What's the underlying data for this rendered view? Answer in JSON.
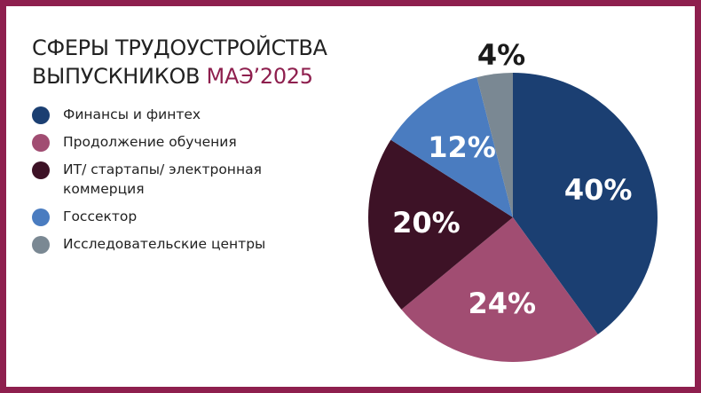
{
  "title": {
    "line1": "СФЕРЫ ТРУДОУСТРОЙСТВА",
    "line2_prefix": "ВЫПУСКНИКОВ ",
    "line2_accent": "МАЭ’2025"
  },
  "colors": {
    "frame": "#8e1f4e",
    "accent": "#8e1f4e"
  },
  "chart_data": {
    "type": "pie",
    "start": "top, clockwise",
    "legend_position": "left",
    "categories": [
      "Финансы и финтех",
      "Продолжение обучения",
      "ИТ/ стартапы/ электронная коммерция",
      "Госсектор",
      "Исследовательские центры"
    ],
    "values": [
      40,
      24,
      20,
      12,
      4
    ],
    "labels": [
      "40%",
      "24%",
      "20%",
      "12%",
      "4%"
    ],
    "colors": [
      "#1b3f72",
      "#a14d72",
      "#3d1226",
      "#4a7cc0",
      "#7a8893"
    ]
  }
}
